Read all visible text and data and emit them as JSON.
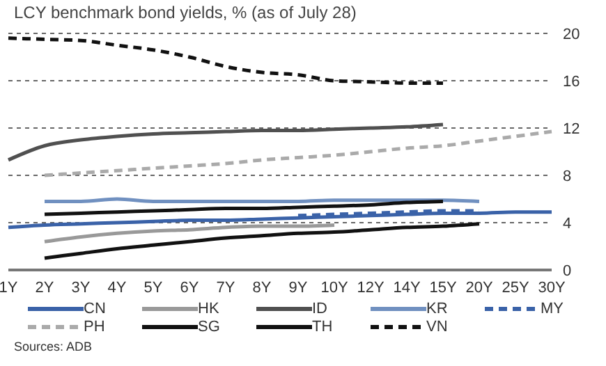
{
  "chart_data": {
    "type": "line",
    "title": "LCY benchmark bond yields, % (as of July 28)",
    "annotations": [
      "Sources: ADB"
    ],
    "categories": [
      "1Y",
      "2Y",
      "3Y",
      "4Y",
      "5Y",
      "6Y",
      "7Y",
      "8Y",
      "9Y",
      "10Y",
      "12Y",
      "14Y",
      "15Y",
      "20Y",
      "25Y",
      "30Y"
    ],
    "series": [
      {
        "name": "CN",
        "color": "#3a62a8",
        "values": [
          3.6,
          3.8,
          3.9,
          4.0,
          4.1,
          4.2,
          4.2,
          4.3,
          4.4,
          4.5,
          4.6,
          4.7,
          4.8,
          4.8,
          4.9,
          4.9
        ]
      },
      {
        "name": "HK",
        "color": "#999999",
        "values": [
          null,
          2.4,
          2.8,
          3.1,
          3.3,
          3.4,
          3.6,
          3.7,
          3.7,
          3.8,
          null,
          null,
          null,
          null,
          null,
          null
        ]
      },
      {
        "name": "ID",
        "color": "#505050",
        "values": [
          9.3,
          10.5,
          11.0,
          11.3,
          11.5,
          11.6,
          11.7,
          11.8,
          11.8,
          11.9,
          12.0,
          12.1,
          12.3,
          null,
          null,
          null
        ]
      },
      {
        "name": "KR",
        "color": "#7090c0",
        "values": [
          null,
          5.8,
          5.8,
          6.0,
          5.8,
          5.8,
          5.8,
          5.8,
          5.8,
          5.9,
          5.9,
          5.9,
          5.9,
          5.8,
          null,
          null
        ]
      },
      {
        "name": "MY",
        "color": "#3a62a8",
        "line_style": "dashed",
        "values": [
          null,
          null,
          null,
          null,
          null,
          null,
          null,
          null,
          4.6,
          4.7,
          4.8,
          4.9,
          5.0,
          5.0,
          null,
          null
        ]
      },
      {
        "name": "PH",
        "color": "#aaaaaa",
        "line_style": "dashed",
        "values": [
          null,
          8.0,
          8.2,
          8.4,
          8.6,
          8.8,
          9.0,
          9.3,
          9.5,
          9.7,
          10.0,
          10.3,
          10.5,
          10.9,
          11.3,
          11.7
        ]
      },
      {
        "name": "SG",
        "color": "#111111",
        "values": [
          null,
          1.0,
          1.4,
          1.8,
          2.1,
          2.4,
          2.7,
          2.9,
          3.1,
          3.2,
          3.4,
          3.6,
          3.7,
          3.9,
          null,
          null
        ]
      },
      {
        "name": "TH",
        "color": "#111111",
        "values": [
          null,
          4.7,
          4.8,
          4.9,
          5.0,
          5.1,
          5.2,
          5.2,
          5.3,
          5.4,
          5.5,
          5.7,
          5.8,
          null,
          null,
          null
        ]
      },
      {
        "name": "VN",
        "color": "#111111",
        "line_style": "dashed",
        "values": [
          19.6,
          19.5,
          19.4,
          19.0,
          18.6,
          18.0,
          17.2,
          16.7,
          16.5,
          16.0,
          15.9,
          15.8,
          15.8,
          null,
          null,
          null
        ]
      }
    ],
    "ylim": [
      0,
      20
    ],
    "yticks": [
      0,
      4,
      8,
      12,
      16,
      20
    ],
    "grid": "y",
    "legend": "bottom",
    "marker": "none",
    "line_style": "solid"
  }
}
